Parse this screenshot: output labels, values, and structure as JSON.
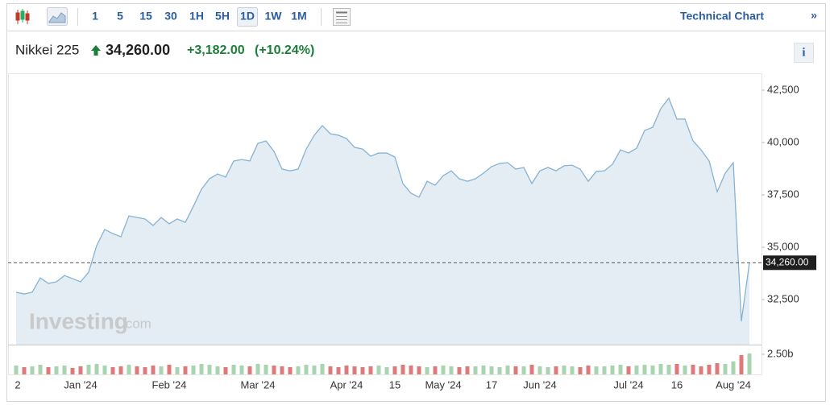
{
  "toolbar": {
    "intervals": [
      "1",
      "5",
      "15",
      "30",
      "1H",
      "5H",
      "1D",
      "1W",
      "1M"
    ],
    "selected": "1D",
    "technical": "Technical Chart",
    "more": "»"
  },
  "header": {
    "name": "Nikkei 225",
    "price": "34,260.00",
    "change": "+3,182.00",
    "change_pct": "(+10.24%)",
    "info": "i"
  },
  "watermark": {
    "brand": "Investing",
    "suffix": ".com"
  },
  "chart_data": {
    "type": "line",
    "categories": [
      "2",
      null,
      null,
      null,
      null,
      null,
      null,
      null,
      "Jan '24",
      null,
      null,
      null,
      null,
      null,
      null,
      null,
      null,
      null,
      null,
      "Feb '24",
      null,
      null,
      null,
      null,
      null,
      null,
      null,
      null,
      null,
      null,
      "Mar '24",
      null,
      null,
      null,
      null,
      null,
      null,
      null,
      null,
      null,
      null,
      "Apr '24",
      null,
      null,
      null,
      null,
      null,
      "15",
      null,
      null,
      null,
      null,
      null,
      "May '24",
      null,
      null,
      null,
      null,
      null,
      "17",
      null,
      null,
      null,
      null,
      null,
      "Jun '24",
      null,
      null,
      null,
      null,
      null,
      null,
      null,
      null,
      null,
      null,
      "Jul '24",
      null,
      null,
      null,
      null,
      null,
      "16",
      null,
      null,
      null,
      null,
      null,
      null,
      "Aug '24",
      null,
      null
    ],
    "series": [
      {
        "name": "Nikkei 225",
        "color": "#86b2d3",
        "fill": "#e4edf4",
        "values": [
          32850,
          32770,
          32850,
          33540,
          33270,
          33350,
          33650,
          33500,
          33350,
          33810,
          35080,
          35850,
          35650,
          35500,
          36500,
          36420,
          36350,
          36040,
          36420,
          36120,
          36350,
          36190,
          36960,
          37770,
          38270,
          38500,
          38350,
          39120,
          39190,
          39120,
          39960,
          40080,
          39580,
          38730,
          38650,
          38730,
          39690,
          40350,
          40810,
          40420,
          40350,
          40190,
          39770,
          39690,
          39350,
          39500,
          39500,
          39310,
          38040,
          37580,
          37390,
          38150,
          37960,
          38420,
          38650,
          38270,
          38150,
          38270,
          38540,
          38850,
          39000,
          39040,
          38730,
          38810,
          38040,
          38650,
          38810,
          38650,
          38890,
          38920,
          38730,
          38150,
          38620,
          38650,
          38960,
          39650,
          39500,
          39730,
          40580,
          40730,
          41620,
          42120,
          41120,
          41120,
          40080,
          39650,
          39120,
          37650,
          38540,
          39040,
          31460,
          34260
        ]
      },
      {
        "name": "Volume",
        "axis": "y2",
        "up_color": "#a8d5b0",
        "down_color": "#e07a7a",
        "values": [
          1.1,
          0.9,
          1.0,
          1.2,
          0.9,
          1.0,
          1.1,
          0.8,
          1.0,
          1.2,
          1.3,
          1.1,
          0.9,
          1.0,
          1.2,
          1.0,
          0.9,
          1.1,
          1.0,
          1.2,
          0.9,
          1.0,
          1.1,
          1.3,
          1.2,
          1.0,
          0.9,
          1.2,
          1.1,
          1.0,
          1.3,
          1.2,
          1.1,
          1.0,
          0.9,
          1.0,
          1.2,
          1.1,
          1.3,
          1.0,
          0.9,
          1.1,
          1.0,
          0.9,
          1.0,
          1.1,
          0.9,
          1.0,
          1.2,
          1.1,
          1.0,
          0.9,
          1.0,
          1.1,
          1.0,
          0.9,
          1.0,
          1.0,
          1.1,
          1.0,
          0.9,
          1.1,
          1.0,
          1.0,
          1.2,
          1.0,
          0.9,
          1.0,
          1.1,
          1.0,
          0.9,
          1.1,
          1.0,
          1.0,
          1.1,
          1.2,
          1.0,
          1.1,
          1.2,
          1.1,
          1.3,
          1.2,
          1.3,
          1.1,
          1.2,
          1.0,
          1.2,
          1.4,
          1.3,
          1.6,
          2.4,
          2.6
        ]
      }
    ],
    "last_label": "34,260.00",
    "ylim": [
      30350,
      43270
    ],
    "yticks": [
      {
        "value": 32500,
        "label": "32,500"
      },
      {
        "value": 35000,
        "label": "35,000"
      },
      {
        "value": 37500,
        "label": "37,500"
      },
      {
        "value": 40000,
        "label": "40,000"
      },
      {
        "value": 42500,
        "label": "42,500"
      }
    ],
    "y2lim": [
      0,
      3.7
    ],
    "y2ticks": [
      {
        "value": 2.5,
        "label": "2.50b"
      }
    ]
  }
}
